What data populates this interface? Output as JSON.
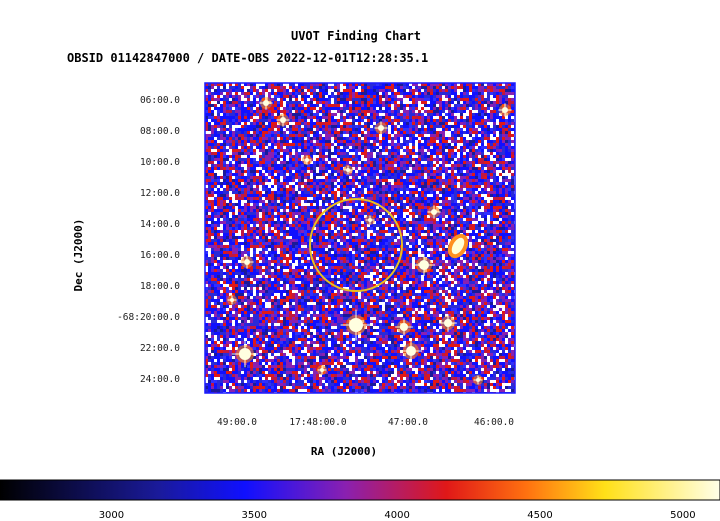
{
  "title": "UVOT Finding Chart",
  "subtitle": "OBSID 01142847000 / DATE-OBS 2022-12-01T12:28:35.1",
  "chart_data": {
    "type": "heatmap",
    "title": "UVOT Finding Chart",
    "subtitle": "OBSID 01142847000 / DATE-OBS 2022-12-01T12:28:35.1",
    "xlabel": "RA (J2000)",
    "ylabel": "Dec (J2000)",
    "x_ticks": [
      "49:00.0",
      "17:48:00.0",
      "47:00.0",
      "46:00.0"
    ],
    "y_ticks": [
      "06:00.0",
      "08:00.0",
      "10:00.0",
      "12:00.0",
      "14:00.0",
      "16:00.0",
      "18:00.0",
      "-68:20:00.0",
      "22:00.0",
      "24:00.0"
    ],
    "colorbar": {
      "ticks": [
        "3000",
        "3500",
        "4000",
        "4500",
        "5000"
      ],
      "tick_values": [
        3000,
        3500,
        4000,
        4500,
        5000
      ],
      "range": [
        2610,
        5130
      ]
    },
    "circle": {
      "color": "#e8c020",
      "label": ""
    },
    "frame_color": "#1a1aff"
  }
}
